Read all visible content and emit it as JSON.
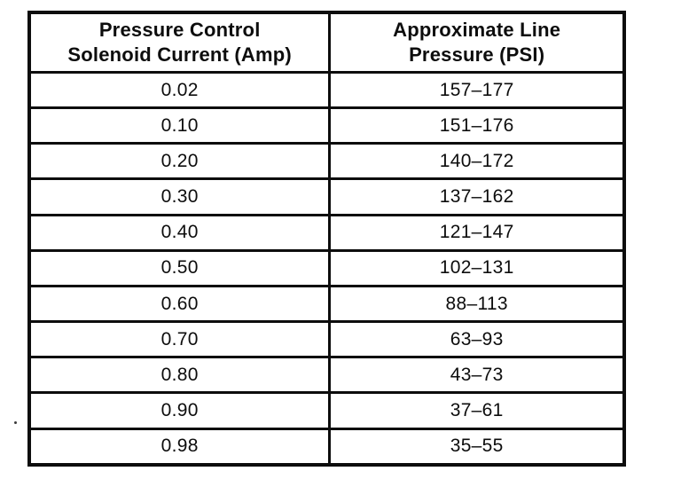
{
  "table": {
    "border_color": "#0d0d0d",
    "background_color": "#ffffff",
    "columns": [
      {
        "label": "Pressure Control\nSolenoid Current (Amp)"
      },
      {
        "label": "Approximate Line\nPressure (PSI)"
      }
    ],
    "rows": [
      {
        "current": "0.02",
        "pressure": "157–177"
      },
      {
        "current": "0.10",
        "pressure": "151–176"
      },
      {
        "current": "0.20",
        "pressure": "140–172"
      },
      {
        "current": "0.30",
        "pressure": "137–162"
      },
      {
        "current": "0.40",
        "pressure": "121–147"
      },
      {
        "current": "0.50",
        "pressure": "102–131"
      },
      {
        "current": "0.60",
        "pressure": "88–113"
      },
      {
        "current": "0.70",
        "pressure": "63–93"
      },
      {
        "current": "0.80",
        "pressure": "43–73"
      },
      {
        "current": "0.90",
        "pressure": "37–61"
      },
      {
        "current": "0.98",
        "pressure": "35–55"
      }
    ]
  }
}
